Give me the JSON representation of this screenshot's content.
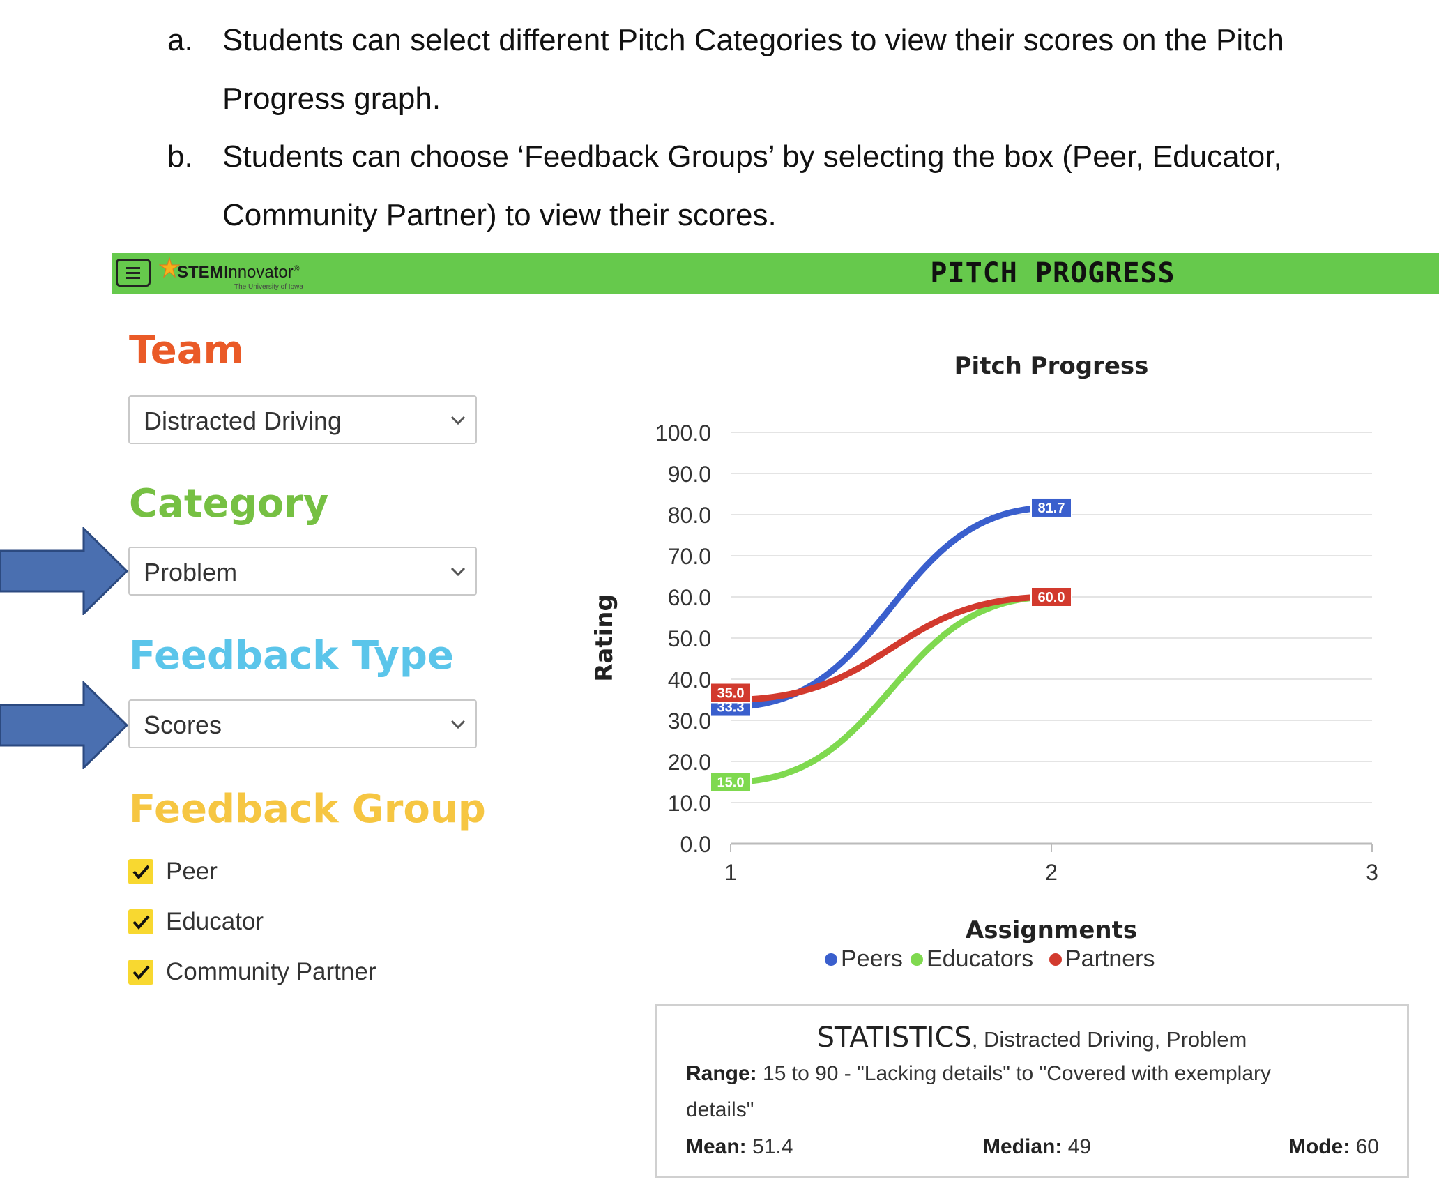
{
  "document": {
    "items": [
      {
        "marker": "a.",
        "lines": [
          "Students can select different Pitch Categories to view their scores on the Pitch",
          "Progress graph."
        ]
      },
      {
        "marker": "b.",
        "lines": [
          "Students can choose ‘Feedback Groups’ by selecting the box (Peer, Educator,",
          "Community Partner) to view their scores."
        ]
      }
    ]
  },
  "app": {
    "brand_bold": "STEM",
    "brand_rest": "Innovator",
    "brand_mark": "®",
    "brand_sub": "The University of Iowa",
    "title": "PITCH PROGRESS",
    "menu_icon": "hamburger-icon",
    "brand_color": "#66c94c"
  },
  "sidebar": {
    "team": {
      "label": "Team",
      "value": "Distracted Driving",
      "color": "#ea5a27"
    },
    "category": {
      "label": "Category",
      "value": "Problem",
      "color": "#76c043"
    },
    "feedback_type": {
      "label": "Feedback Type",
      "value": "Scores",
      "color": "#5bc5ea"
    },
    "feedback_group": {
      "label": "Feedback Group",
      "color": "#f6c642",
      "options": [
        {
          "label": "Peer",
          "checked": true
        },
        {
          "label": "Educator",
          "checked": true
        },
        {
          "label": "Community Partner",
          "checked": true
        }
      ]
    },
    "annotation_arrow_color": "#4a6fb0"
  },
  "chart_data": {
    "type": "line",
    "title": "Pitch Progress",
    "xlabel": "Assignments",
    "ylabel": "Rating",
    "x_ticks": [
      "1",
      "2",
      "3"
    ],
    "y_ticks": [
      "100.0",
      "90.0",
      "80.0",
      "70.0",
      "60.0",
      "50.0",
      "40.0",
      "30.0",
      "20.0",
      "10.0",
      "0.0"
    ],
    "xlim": [
      1,
      3
    ],
    "ylim": [
      0,
      100
    ],
    "grid": true,
    "legend": "bottom-center",
    "series": [
      {
        "name": "Peers",
        "color": "#3a5fcd",
        "x": [
          1,
          2
        ],
        "y": [
          33.3,
          81.7
        ],
        "labels": [
          "33.3",
          "81.7"
        ]
      },
      {
        "name": "Educators",
        "color": "#7fd94f",
        "x": [
          1,
          2
        ],
        "y": [
          15.0,
          60.0
        ],
        "labels": [
          "15.0",
          "60.0"
        ]
      },
      {
        "name": "Partners",
        "color": "#d23a2e",
        "x": [
          1,
          2
        ],
        "y": [
          35.0,
          60.0
        ],
        "labels": [
          "35.0",
          "60.0"
        ]
      }
    ]
  },
  "statistics": {
    "heading": "STATISTICS",
    "context": ", Distracted Driving, Problem",
    "range_label": "Range:",
    "range_text_1": "15 to 90 - \"Lacking details\" to \"Covered with exemplary",
    "range_text_2": "details\"",
    "mean_label": "Mean:",
    "mean_value": "51.4",
    "median_label": "Median:",
    "median_value": "49",
    "mode_label": "Mode:",
    "mode_value": "60"
  }
}
